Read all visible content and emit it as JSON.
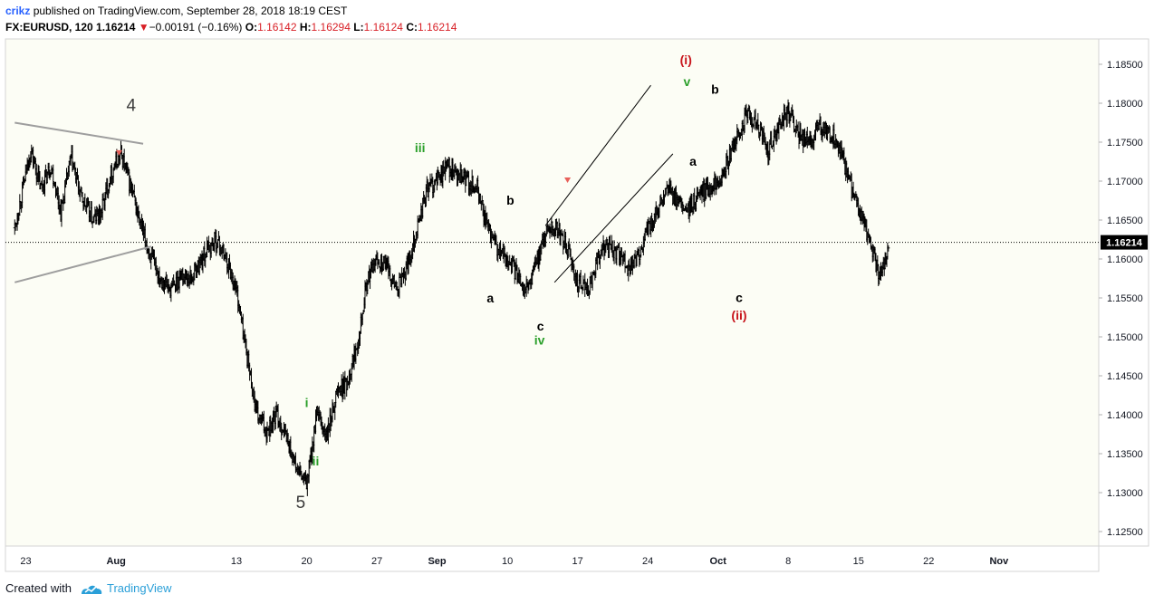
{
  "header": {
    "author": "crikz",
    "published_text": "published on TradingView.com, September 28, 2018 18:19 CEST",
    "symbol": "FX:EURUSD, 120",
    "last": "1.16214",
    "change": "−0.00191 (−0.16%)",
    "o_label": "O:",
    "o_value": "1.16142",
    "h_label": "H:",
    "h_value": "1.16294",
    "l_label": "L:",
    "l_value": "1.16124",
    "c_label": "C:",
    "c_value": "1.16214"
  },
  "footer": {
    "created_with": "Created with",
    "brand": "TradingView"
  },
  "colors": {
    "plot_bg": "#fcfdf5",
    "bar": "#000000",
    "green_label": "#2ca02c",
    "red_label": "#c8161d",
    "trendline_gray": "#9e9e9e",
    "price_badge": "#000000"
  },
  "chart_data": {
    "type": "bar",
    "title": "FX:EURUSD, 120",
    "ylim": [
      1.122,
      1.189
    ],
    "y_ticks": [
      1.125,
      1.13,
      1.135,
      1.14,
      1.145,
      1.15,
      1.155,
      1.16,
      1.165,
      1.17,
      1.175,
      1.18,
      1.185
    ],
    "y_tick_labels": [
      "1.12500",
      "1.13000",
      "1.13500",
      "1.14000",
      "1.14500",
      "1.15000",
      "1.15500",
      "1.16000",
      "1.16500",
      "1.17000",
      "1.17500",
      "1.18000",
      "1.18500"
    ],
    "x_range_days": [
      -1.6,
      39.4
    ],
    "x_ticks": [
      {
        "day": -0.5,
        "label": "23"
      },
      {
        "day": 8.5,
        "label": "Aug"
      },
      {
        "day": 20.5,
        "label": "13"
      },
      {
        "day": 27.5,
        "label": "20"
      },
      {
        "day": 34.5,
        "label": "27"
      },
      {
        "day": 40.5,
        "label": "Sep"
      },
      {
        "day": 47.5,
        "label": "10"
      },
      {
        "day": 54.5,
        "label": "17"
      },
      {
        "day": 61.5,
        "label": "24"
      },
      {
        "day": 68.5,
        "label": "Oct"
      },
      {
        "day": 75.5,
        "label": "8"
      },
      {
        "day": 82.5,
        "label": "15"
      },
      {
        "day": 89.5,
        "label": "22"
      },
      {
        "day": 96.5,
        "label": "Nov"
      }
    ],
    "last_price": 1.16214,
    "last_price_label": "1.16214",
    "path_points": [
      [
        -1.6,
        1.164
      ],
      [
        0.0,
        1.174
      ],
      [
        1.0,
        1.169
      ],
      [
        2.0,
        1.172
      ],
      [
        3.0,
        1.166
      ],
      [
        4.0,
        1.173
      ],
      [
        5.0,
        1.168
      ],
      [
        6.2,
        1.165
      ],
      [
        7.0,
        1.166
      ],
      [
        8.0,
        1.171
      ],
      [
        9.0,
        1.1735
      ],
      [
        10.0,
        1.169
      ],
      [
        11.0,
        1.164
      ],
      [
        12.0,
        1.16
      ],
      [
        13.0,
        1.1575
      ],
      [
        14.0,
        1.156
      ],
      [
        15.0,
        1.158
      ],
      [
        16.0,
        1.1575
      ],
      [
        17.5,
        1.161
      ],
      [
        18.5,
        1.1625
      ],
      [
        19.5,
        1.16
      ],
      [
        20.5,
        1.156
      ],
      [
        21.5,
        1.148
      ],
      [
        22.5,
        1.14
      ],
      [
        23.5,
        1.138
      ],
      [
        24.5,
        1.14
      ],
      [
        25.5,
        1.137
      ],
      [
        26.5,
        1.133
      ],
      [
        27.5,
        1.131
      ],
      [
        28.5,
        1.14
      ],
      [
        29.5,
        1.137
      ],
      [
        30.5,
        1.143
      ],
      [
        31.5,
        1.144
      ],
      [
        32.5,
        1.149
      ],
      [
        33.5,
        1.157
      ],
      [
        34.5,
        1.16
      ],
      [
        35.5,
        1.159
      ],
      [
        36.5,
        1.156
      ],
      [
        37.5,
        1.159
      ],
      [
        38.5,
        1.164
      ],
      [
        39.5,
        1.169
      ],
      [
        40.5,
        1.17
      ],
      [
        41.5,
        1.172
      ],
      [
        42.5,
        1.1705
      ],
      [
        43.5,
        1.17
      ],
      [
        44.5,
        1.169
      ],
      [
        45.5,
        1.164
      ],
      [
        46.5,
        1.161
      ],
      [
        47.5,
        1.16
      ],
      [
        48.5,
        1.158
      ],
      [
        49.5,
        1.156
      ],
      [
        50.5,
        1.16
      ],
      [
        51.5,
        1.164
      ],
      [
        52.5,
        1.164
      ],
      [
        53.5,
        1.161
      ],
      [
        54.5,
        1.157
      ],
      [
        55.5,
        1.156
      ],
      [
        56.5,
        1.16
      ],
      [
        57.5,
        1.162
      ],
      [
        58.5,
        1.1605
      ],
      [
        59.5,
        1.159
      ],
      [
        60.5,
        1.16
      ],
      [
        61.5,
        1.164
      ],
      [
        62.5,
        1.166
      ],
      [
        63.5,
        1.169
      ],
      [
        64.5,
        1.167
      ],
      [
        65.5,
        1.166
      ],
      [
        66.5,
        1.168
      ],
      [
        67.5,
        1.169
      ],
      [
        68.5,
        1.17
      ],
      [
        69.5,
        1.1725
      ],
      [
        70.5,
        1.176
      ],
      [
        71.5,
        1.1785
      ],
      [
        72.5,
        1.177
      ],
      [
        73.5,
        1.174
      ],
      [
        74.5,
        1.177
      ],
      [
        75.5,
        1.179
      ],
      [
        76.5,
        1.176
      ],
      [
        77.5,
        1.175
      ],
      [
        78.5,
        1.177
      ],
      [
        79.5,
        1.176
      ],
      [
        80.5,
        1.175
      ],
      [
        81.5,
        1.17
      ],
      [
        82.5,
        1.166
      ],
      [
        83.5,
        1.163
      ],
      [
        84.5,
        1.158
      ],
      [
        85.5,
        1.161
      ]
    ],
    "trendlines": [
      {
        "name": "triangle-upper",
        "color": "gray",
        "points": [
          [
            -1.6,
            1.1775
          ],
          [
            11.2,
            1.1748
          ]
        ]
      },
      {
        "name": "triangle-lower",
        "color": "gray",
        "points": [
          [
            -1.6,
            1.157
          ],
          [
            12.0,
            1.1616
          ]
        ]
      },
      {
        "name": "channel-upper",
        "color": "black",
        "points": [
          [
            51.3,
            1.1643
          ],
          [
            61.8,
            1.1823
          ]
        ]
      },
      {
        "name": "channel-lower",
        "color": "black",
        "points": [
          [
            52.2,
            1.157
          ],
          [
            64.0,
            1.1735
          ]
        ]
      }
    ],
    "markers": [
      {
        "day": 8.8,
        "price": 1.1735,
        "shape": "down-triangle"
      },
      {
        "day": 53.5,
        "price": 1.17,
        "shape": "down-triangle"
      }
    ],
    "wave_labels": [
      {
        "text": "4",
        "day": 10.0,
        "price": 1.179,
        "color": "dark",
        "size": "large"
      },
      {
        "text": "5",
        "day": 26.9,
        "price": 1.128,
        "color": "dark",
        "size": "large"
      },
      {
        "text": "i",
        "day": 27.5,
        "price": 1.141,
        "color": "green",
        "size": "small"
      },
      {
        "text": "ii",
        "day": 28.4,
        "price": 1.1335,
        "color": "green",
        "size": "small"
      },
      {
        "text": "iii",
        "day": 38.8,
        "price": 1.1737,
        "color": "green",
        "size": "small"
      },
      {
        "text": "iv",
        "day": 50.7,
        "price": 1.149,
        "color": "green",
        "size": "small"
      },
      {
        "text": "v",
        "day": 65.4,
        "price": 1.1822,
        "color": "green",
        "size": "small"
      },
      {
        "text": "a",
        "day": 45.8,
        "price": 1.1544,
        "color": "black",
        "size": "small"
      },
      {
        "text": "b",
        "day": 47.8,
        "price": 1.167,
        "color": "black",
        "size": "small"
      },
      {
        "text": "c",
        "day": 50.8,
        "price": 1.1508,
        "color": "black",
        "size": "small"
      },
      {
        "text": "a",
        "day": 66.0,
        "price": 1.172,
        "color": "black",
        "size": "small"
      },
      {
        "text": "b",
        "day": 68.2,
        "price": 1.1812,
        "color": "black",
        "size": "small"
      },
      {
        "text": "c",
        "day": 70.6,
        "price": 1.1545,
        "color": "black",
        "size": "small"
      },
      {
        "text": "(i)",
        "day": 65.3,
        "price": 1.185,
        "color": "red",
        "size": "small"
      },
      {
        "text": "(ii)",
        "day": 70.6,
        "price": 1.1522,
        "color": "red",
        "size": "small"
      }
    ]
  }
}
